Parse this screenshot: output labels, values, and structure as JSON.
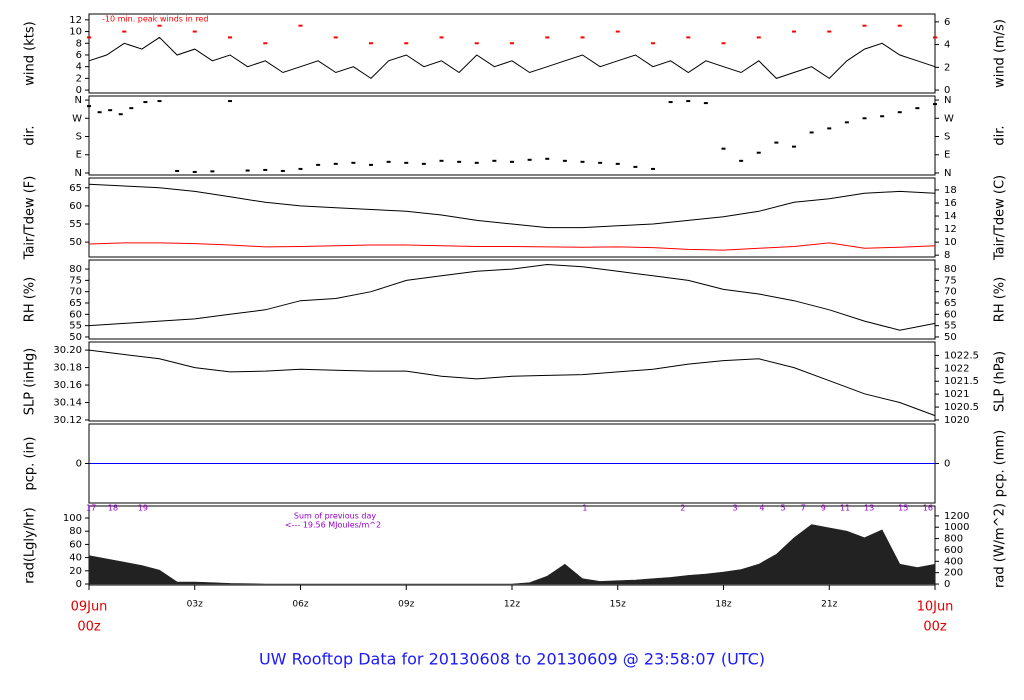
{
  "title": "UW Rooftop Data for 20130608  to  20130609 @ 23:58:07  (UTC)",
  "chart_data": [
    {
      "type": "line",
      "ylabel": "wind (kts)",
      "y2label": "wind (m/s)",
      "annotation": "-10 min. peak winds in red",
      "xlim": [
        0,
        24
      ],
      "ylim": [
        -0.5,
        13
      ],
      "yticks": [
        0,
        2,
        4,
        6,
        8,
        10,
        12
      ],
      "y2lim": [
        -0.26,
        6.69
      ],
      "y2ticks": [
        0,
        2,
        4,
        6
      ],
      "series": [
        {
          "color": "#000000",
          "mode": "line",
          "x": [
            0,
            0.5,
            1,
            1.5,
            2,
            2.5,
            3,
            3.5,
            4,
            4.5,
            5,
            5.5,
            6,
            6.5,
            7,
            7.5,
            8,
            8.5,
            9,
            9.5,
            10,
            10.5,
            11,
            11.5,
            12,
            12.5,
            13,
            13.5,
            14,
            14.5,
            15,
            15.5,
            16,
            16.5,
            17,
            17.5,
            18,
            18.5,
            19,
            19.5,
            20,
            20.5,
            21,
            21.5,
            22,
            22.5,
            23,
            23.5,
            24
          ],
          "values": [
            5,
            6,
            8,
            7,
            9,
            6,
            7,
            5,
            6,
            4,
            5,
            3,
            4,
            5,
            3,
            4,
            2,
            5,
            6,
            4,
            5,
            3,
            6,
            4,
            5,
            3,
            4,
            5,
            6,
            4,
            5,
            6,
            4,
            5,
            3,
            5,
            4,
            3,
            5,
            2,
            3,
            4,
            2,
            5,
            7,
            8,
            6,
            5,
            4
          ]
        },
        {
          "color": "#ff0000",
          "mode": "points",
          "x": [
            0,
            1,
            2,
            3,
            4,
            5,
            6,
            7,
            8,
            9,
            10,
            11,
            12,
            13,
            14,
            15,
            16,
            17,
            18,
            19,
            20,
            21,
            22,
            23,
            24
          ],
          "values": [
            9,
            10,
            11,
            10,
            9,
            8,
            11,
            9,
            8,
            8,
            9,
            8,
            8,
            9,
            9,
            10,
            8,
            9,
            8,
            9,
            10,
            10,
            11,
            11,
            9
          ]
        }
      ]
    },
    {
      "type": "scatter",
      "ylabel": "dir.",
      "y2label": "dir.",
      "xlim": [
        0,
        24
      ],
      "ylim": [
        -10,
        380
      ],
      "yticks": [
        {
          "value": 0,
          "label": "N"
        },
        {
          "value": 90,
          "label": "E"
        },
        {
          "value": 180,
          "label": "S"
        },
        {
          "value": 270,
          "label": "W"
        },
        {
          "value": 360,
          "label": "N"
        }
      ],
      "y2lim": [
        -10,
        380
      ],
      "y2ticks": [
        {
          "value": 0,
          "label": "N"
        },
        {
          "value": 90,
          "label": "E"
        },
        {
          "value": 180,
          "label": "S"
        },
        {
          "value": 270,
          "label": "W"
        },
        {
          "value": 360,
          "label": "N"
        }
      ],
      "series": [
        {
          "color": "#000000",
          "mode": "points",
          "x": [
            0,
            0.3,
            0.6,
            0.9,
            1.2,
            1.6,
            2,
            2.5,
            3,
            3.5,
            4,
            4.5,
            5,
            5.5,
            6,
            6.5,
            7,
            7.5,
            8,
            8.5,
            9,
            9.5,
            10,
            10.5,
            11,
            11.5,
            12,
            12.5,
            13,
            13.5,
            14,
            14.5,
            15,
            15.5,
            16,
            16.5,
            17,
            17.5,
            18,
            18.5,
            19,
            19.5,
            20,
            20.5,
            21,
            21.5,
            22,
            22.5,
            23,
            23.5,
            24
          ],
          "values": [
            330,
            300,
            310,
            290,
            320,
            350,
            355,
            10,
            5,
            8,
            355,
            12,
            15,
            10,
            20,
            40,
            45,
            50,
            40,
            55,
            50,
            45,
            60,
            55,
            50,
            60,
            55,
            65,
            70,
            60,
            55,
            50,
            45,
            30,
            20,
            350,
            355,
            345,
            120,
            60,
            100,
            150,
            130,
            200,
            220,
            250,
            270,
            280,
            300,
            320,
            340
          ]
        }
      ]
    },
    {
      "type": "line",
      "ylabel": "Tair/Tdew (F)",
      "y2label": "Tair/Tdew (C)",
      "xlim": [
        0,
        24
      ],
      "ylim": [
        45.9,
        67.7
      ],
      "yticks": [
        50,
        55,
        60,
        65
      ],
      "y2lim": [
        7.72,
        19.83
      ],
      "y2ticks": [
        8,
        10,
        12,
        14,
        16,
        18
      ],
      "series": [
        {
          "color": "#000000",
          "mode": "line",
          "x": [
            0,
            1,
            2,
            3,
            4,
            5,
            6,
            7,
            8,
            9,
            10,
            11,
            12,
            13,
            14,
            15,
            16,
            17,
            18,
            19,
            20,
            21,
            22,
            23,
            24
          ],
          "values": [
            66,
            65.5,
            65,
            64,
            62.5,
            61,
            60,
            59.5,
            59,
            58.5,
            57.5,
            56,
            55,
            54,
            54,
            54.5,
            55,
            56,
            57,
            58.5,
            61,
            62,
            63.5,
            64,
            63.5
          ]
        },
        {
          "color": "#ff0000",
          "mode": "line",
          "x": [
            0,
            1,
            2,
            3,
            4,
            5,
            6,
            7,
            8,
            9,
            10,
            11,
            12,
            13,
            14,
            15,
            16,
            17,
            18,
            19,
            20,
            21,
            22,
            23,
            24
          ],
          "values": [
            49.5,
            49.8,
            49.8,
            49.6,
            49.2,
            48.7,
            48.8,
            49,
            49.2,
            49.2,
            49,
            48.8,
            48.8,
            48.7,
            48.6,
            48.7,
            48.5,
            48,
            47.8,
            48.3,
            48.8,
            49.8,
            48.3,
            48.6,
            49
          ]
        }
      ]
    },
    {
      "type": "line",
      "ylabel": "RH (%)",
      "y2label": "RH (%)",
      "xlim": [
        0,
        24
      ],
      "ylim": [
        49.1,
        84
      ],
      "yticks": [
        50,
        55,
        60,
        65,
        70,
        75,
        80
      ],
      "y2lim": [
        49.1,
        84
      ],
      "y2ticks": [
        50,
        55,
        60,
        65,
        70,
        75,
        80
      ],
      "series": [
        {
          "color": "#000000",
          "mode": "line",
          "x": [
            0,
            1,
            2,
            3,
            4,
            5,
            6,
            7,
            8,
            9,
            10,
            11,
            12,
            13,
            14,
            15,
            16,
            17,
            18,
            19,
            20,
            21,
            22,
            23,
            24
          ],
          "values": [
            55,
            56,
            57,
            58,
            60,
            62,
            66,
            67,
            70,
            75,
            77,
            79,
            80,
            82,
            81,
            79,
            77,
            75,
            71,
            69,
            66,
            62,
            57,
            53,
            56
          ]
        }
      ]
    },
    {
      "type": "line",
      "ylabel": "SLP (inHg)",
      "y2label": "SLP (hPa)",
      "xlim": [
        0,
        24
      ],
      "ylim": [
        30.1188,
        30.2093
      ],
      "yticks": [
        30.12,
        30.14,
        30.16,
        30.18,
        {
          "value": 30.2,
          "label": "30.20"
        }
      ],
      "y2lim": [
        1019.96,
        1023.02
      ],
      "y2ticks": [
        1020,
        1020.5,
        1021,
        1021.5,
        1022,
        1022.5
      ],
      "series": [
        {
          "color": "#000000",
          "mode": "line",
          "x": [
            0,
            1,
            2,
            3,
            4,
            5,
            6,
            7,
            8,
            9,
            10,
            11,
            12,
            13,
            14,
            15,
            16,
            17,
            18,
            19,
            20,
            21,
            22,
            23,
            24
          ],
          "values": [
            30.2,
            30.195,
            30.19,
            30.18,
            30.175,
            30.176,
            30.178,
            30.177,
            30.176,
            30.176,
            30.17,
            30.167,
            30.17,
            30.171,
            30.172,
            30.175,
            30.178,
            30.184,
            30.188,
            30.19,
            30.18,
            30.165,
            30.15,
            30.14,
            30.125
          ]
        }
      ]
    },
    {
      "type": "line",
      "ylabel": "pcp. (in)",
      "y2label": "pcp. (mm)",
      "xlim": [
        0,
        24
      ],
      "ylim": [
        -1,
        1
      ],
      "yticks": [
        0
      ],
      "y2lim": [
        -1,
        1
      ],
      "y2ticks": [
        0
      ],
      "series": [
        {
          "color": "#0000ff",
          "mode": "line",
          "x": [
            0,
            24
          ],
          "values": [
            0,
            0
          ]
        }
      ]
    },
    {
      "type": "area",
      "ylabel": "rad(Lgly/hr)",
      "y2label": "rad (W/m^2)",
      "annotations": [
        "Sum of previous day",
        "<--- 19.56 MJoules/m^2"
      ],
      "annotation_color": "#9900cc",
      "hour_markers": [
        {
          "value": 0.06,
          "label": "17"
        },
        {
          "value": 0.68,
          "label": "18"
        },
        {
          "value": 1.53,
          "label": "19"
        },
        {
          "value": 14.07,
          "label": "1"
        },
        {
          "value": 16.85,
          "label": "2"
        },
        {
          "value": 18.33,
          "label": "3"
        },
        {
          "value": 19.09,
          "label": "4"
        },
        {
          "value": 19.69,
          "label": "5"
        },
        {
          "value": 20.26,
          "label": "7"
        },
        {
          "value": 20.83,
          "label": "9"
        },
        {
          "value": 21.45,
          "label": "11"
        },
        {
          "value": 22.13,
          "label": "13"
        },
        {
          "value": 23.1,
          "label": "15"
        },
        {
          "value": 23.8,
          "label": "16"
        }
      ],
      "xlim": [
        0,
        24
      ],
      "ylim": [
        -1.5,
        118.2
      ],
      "yticks": [
        0,
        20,
        40,
        60,
        80,
        100
      ],
      "y2lim": [
        -17,
        1374
      ],
      "y2ticks": [
        0,
        200,
        400,
        600,
        800,
        1000,
        1200
      ],
      "xticks": [
        {
          "value": 0,
          "label": "00z"
        },
        {
          "value": 3,
          "label": "03z"
        },
        {
          "value": 6,
          "label": "06z"
        },
        {
          "value": 9,
          "label": "09z"
        },
        {
          "value": 12,
          "label": "12z"
        },
        {
          "value": 15,
          "label": "15z"
        },
        {
          "value": 18,
          "label": "18z"
        },
        {
          "value": 21,
          "label": "21z"
        },
        {
          "value": 24,
          "label": "00z"
        }
      ],
      "date_labels": [
        {
          "value": 0,
          "label": "09Jun"
        },
        {
          "value": 24,
          "label": "10Jun"
        }
      ],
      "date_color": "#e00000",
      "series": [
        {
          "color": "#222222",
          "mode": "area",
          "x": [
            0,
            0.5,
            1,
            1.5,
            2,
            2.5,
            3,
            3.5,
            4,
            4.5,
            5,
            5.5,
            6,
            6.5,
            7,
            7.5,
            8,
            8.5,
            9,
            9.5,
            10,
            10.5,
            11,
            11.5,
            12,
            12.5,
            13,
            13.5,
            14,
            14.5,
            15,
            15.5,
            16,
            16.5,
            17,
            17.5,
            18,
            18.5,
            19,
            19.5,
            20,
            20.5,
            21,
            21.5,
            22,
            22.5,
            23,
            23.5,
            24
          ],
          "values": [
            43,
            38,
            33,
            28,
            21,
            3,
            3,
            2,
            1,
            0.5,
            0,
            0,
            0,
            0,
            0,
            0,
            0,
            0,
            0,
            0,
            0,
            0,
            0,
            0,
            0,
            2,
            12,
            30,
            8,
            4,
            5,
            6,
            8,
            10,
            13,
            15,
            18,
            22,
            30,
            45,
            70,
            90,
            85,
            80,
            70,
            82,
            30,
            25,
            30
          ]
        }
      ]
    }
  ]
}
